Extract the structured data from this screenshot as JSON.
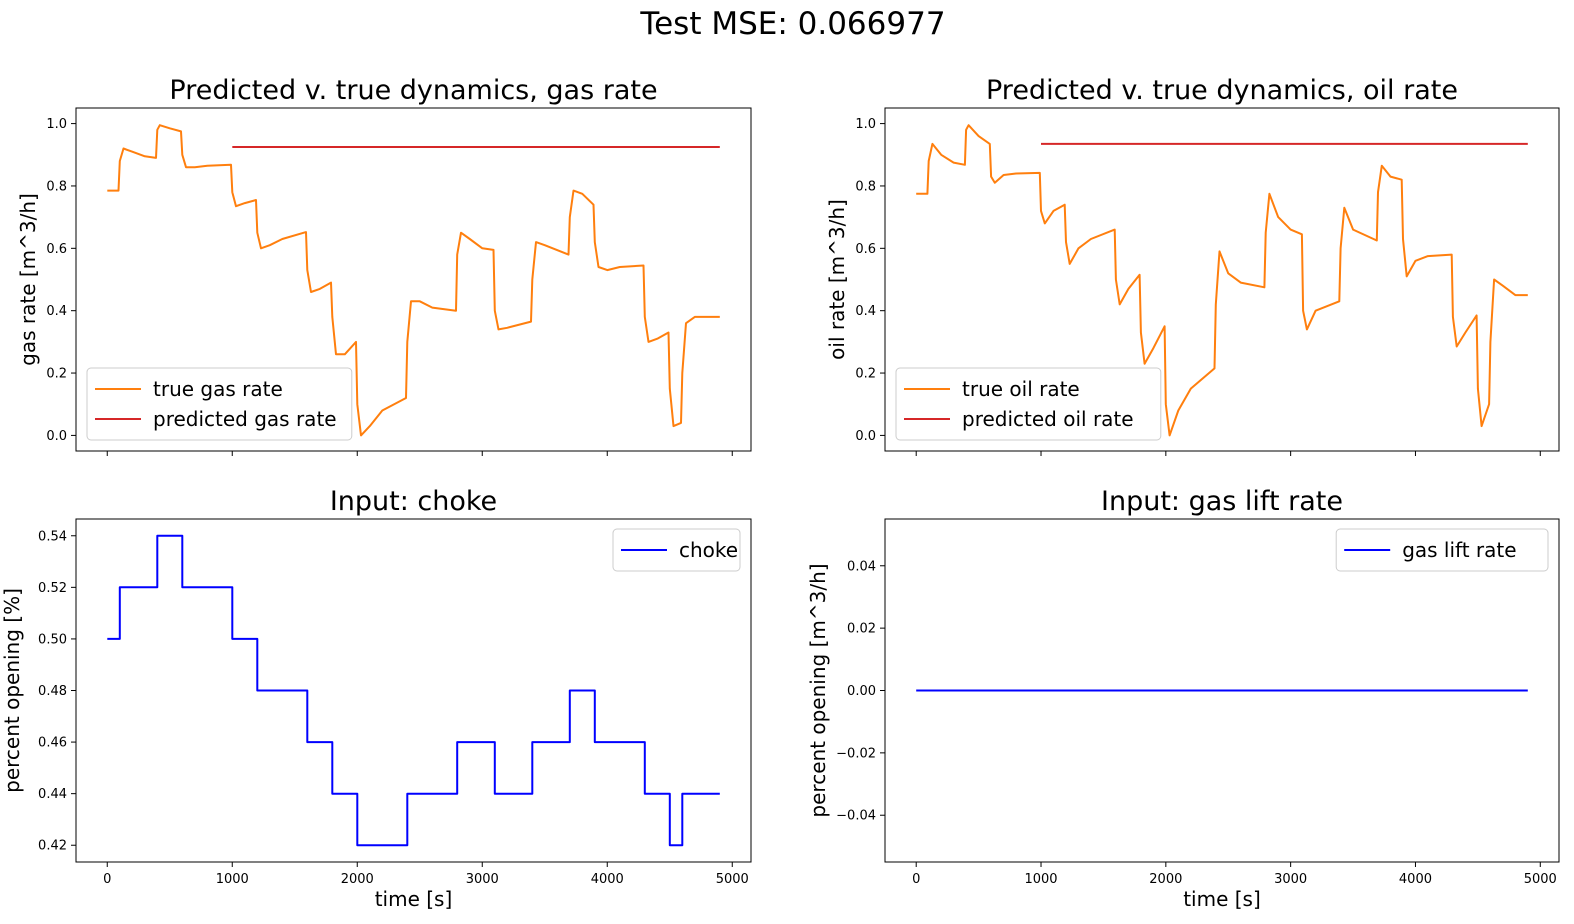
{
  "suptitle": "Test MSE: 0.066977",
  "colors": {
    "true": "#ff7f0e",
    "predicted": "#d62728",
    "input": "#0000ff"
  },
  "chart_data": [
    {
      "type": "line",
      "title": "Predicted v. true dynamics, gas rate",
      "xlabel": "",
      "ylabel": "gas rate [m^3/h]",
      "xlim": [
        -250,
        5150
      ],
      "ylim": [
        -0.05,
        1.05
      ],
      "xticks": [
        0,
        1000,
        2000,
        3000,
        4000,
        5000
      ],
      "xtick_labels_visible": false,
      "yticks": [
        0.0,
        0.2,
        0.4,
        0.6,
        0.8,
        1.0
      ],
      "ytick_labels": [
        "0.0",
        "0.2",
        "0.4",
        "0.6",
        "0.8",
        "1.0"
      ],
      "legend_position": "lower-left",
      "series": [
        {
          "name": "true gas rate",
          "color": "#ff7f0e",
          "x": [
            0,
            90,
            100,
            130,
            200,
            300,
            390,
            400,
            420,
            500,
            590,
            600,
            630,
            700,
            800,
            990,
            1000,
            1030,
            1100,
            1190,
            1200,
            1230,
            1300,
            1400,
            1590,
            1600,
            1630,
            1700,
            1790,
            1800,
            1830,
            1900,
            1990,
            2000,
            2030,
            2100,
            2200,
            2390,
            2400,
            2430,
            2500,
            2600,
            2790,
            2800,
            2830,
            2900,
            3000,
            3090,
            3100,
            3130,
            3200,
            3390,
            3400,
            3430,
            3500,
            3690,
            3700,
            3730,
            3800,
            3890,
            3900,
            3930,
            4000,
            4100,
            4290,
            4300,
            4330,
            4400,
            4490,
            4500,
            4530,
            4590,
            4600,
            4630,
            4700,
            4800,
            4900
          ],
          "y": [
            0.785,
            0.785,
            0.88,
            0.92,
            0.91,
            0.895,
            0.89,
            0.98,
            0.995,
            0.985,
            0.975,
            0.9,
            0.86,
            0.86,
            0.865,
            0.868,
            0.78,
            0.735,
            0.745,
            0.755,
            0.65,
            0.6,
            0.61,
            0.63,
            0.652,
            0.53,
            0.46,
            0.47,
            0.49,
            0.38,
            0.26,
            0.26,
            0.3,
            0.1,
            0.0,
            0.03,
            0.08,
            0.12,
            0.3,
            0.43,
            0.43,
            0.41,
            0.4,
            0.58,
            0.65,
            0.63,
            0.6,
            0.595,
            0.4,
            0.34,
            0.345,
            0.365,
            0.5,
            0.62,
            0.61,
            0.58,
            0.7,
            0.785,
            0.775,
            0.74,
            0.62,
            0.54,
            0.53,
            0.54,
            0.545,
            0.38,
            0.3,
            0.31,
            0.33,
            0.15,
            0.03,
            0.04,
            0.2,
            0.36,
            0.38,
            0.38,
            0.38
          ]
        },
        {
          "name": "predicted gas rate",
          "color": "#d62728",
          "x": [
            1000,
            4900
          ],
          "y": [
            0.925,
            0.925
          ]
        }
      ]
    },
    {
      "type": "line",
      "title": "Predicted v. true dynamics, oil rate",
      "xlabel": "",
      "ylabel": "oil rate [m^3/h]",
      "xlim": [
        -250,
        5150
      ],
      "ylim": [
        -0.05,
        1.05
      ],
      "xticks": [
        0,
        1000,
        2000,
        3000,
        4000,
        5000
      ],
      "xtick_labels_visible": false,
      "yticks": [
        0.0,
        0.2,
        0.4,
        0.6,
        0.8,
        1.0
      ],
      "ytick_labels": [
        "0.0",
        "0.2",
        "0.4",
        "0.6",
        "0.8",
        "1.0"
      ],
      "legend_position": "lower-left",
      "series": [
        {
          "name": "true oil rate",
          "color": "#ff7f0e",
          "x": [
            0,
            90,
            100,
            130,
            200,
            300,
            390,
            400,
            420,
            500,
            590,
            600,
            630,
            700,
            800,
            990,
            1000,
            1030,
            1100,
            1190,
            1200,
            1230,
            1300,
            1400,
            1590,
            1600,
            1630,
            1700,
            1790,
            1800,
            1830,
            1900,
            1990,
            2000,
            2030,
            2100,
            2200,
            2390,
            2400,
            2430,
            2500,
            2600,
            2790,
            2800,
            2830,
            2900,
            3000,
            3090,
            3100,
            3130,
            3200,
            3390,
            3400,
            3430,
            3500,
            3690,
            3700,
            3730,
            3800,
            3890,
            3900,
            3930,
            4000,
            4100,
            4290,
            4300,
            4330,
            4400,
            4490,
            4500,
            4530,
            4590,
            4600,
            4630,
            4700,
            4800,
            4900
          ],
          "y": [
            0.775,
            0.775,
            0.88,
            0.935,
            0.9,
            0.875,
            0.868,
            0.98,
            0.995,
            0.96,
            0.935,
            0.83,
            0.81,
            0.835,
            0.84,
            0.842,
            0.72,
            0.68,
            0.72,
            0.74,
            0.62,
            0.55,
            0.6,
            0.63,
            0.66,
            0.5,
            0.42,
            0.47,
            0.515,
            0.33,
            0.23,
            0.28,
            0.35,
            0.1,
            0.0,
            0.08,
            0.15,
            0.215,
            0.42,
            0.59,
            0.52,
            0.49,
            0.475,
            0.65,
            0.775,
            0.7,
            0.66,
            0.645,
            0.4,
            0.34,
            0.4,
            0.43,
            0.6,
            0.73,
            0.66,
            0.625,
            0.78,
            0.865,
            0.83,
            0.82,
            0.63,
            0.51,
            0.56,
            0.575,
            0.58,
            0.38,
            0.285,
            0.33,
            0.385,
            0.15,
            0.03,
            0.1,
            0.3,
            0.5,
            0.48,
            0.45,
            0.45
          ]
        },
        {
          "name": "predicted oil rate",
          "color": "#d62728",
          "x": [
            1000,
            4900
          ],
          "y": [
            0.935,
            0.935
          ]
        }
      ]
    },
    {
      "type": "line",
      "title": "Input: choke",
      "xlabel": "time [s]",
      "ylabel": "percent opening [%]",
      "xlim": [
        -250,
        5150
      ],
      "ylim": [
        0.4135,
        0.5465
      ],
      "xticks": [
        0,
        1000,
        2000,
        3000,
        4000,
        5000
      ],
      "xtick_labels_visible": true,
      "xtick_labels": [
        "0",
        "1000",
        "2000",
        "3000",
        "4000",
        "5000"
      ],
      "yticks": [
        0.42,
        0.44,
        0.46,
        0.48,
        0.5,
        0.52,
        0.54
      ],
      "ytick_labels": [
        "0.42",
        "0.44",
        "0.46",
        "0.48",
        "0.50",
        "0.52",
        "0.54"
      ],
      "legend_position": "upper-right",
      "series": [
        {
          "name": "choke",
          "color": "#0000ff",
          "x": [
            0,
            100,
            100,
            400,
            400,
            600,
            600,
            1000,
            1000,
            1200,
            1200,
            1600,
            1600,
            1800,
            1800,
            2000,
            2000,
            2400,
            2400,
            2800,
            2800,
            3100,
            3100,
            3400,
            3400,
            3700,
            3700,
            3900,
            3900,
            4300,
            4300,
            4500,
            4500,
            4600,
            4600,
            4900
          ],
          "y": [
            0.5,
            0.5,
            0.52,
            0.52,
            0.54,
            0.54,
            0.52,
            0.52,
            0.5,
            0.5,
            0.48,
            0.48,
            0.46,
            0.46,
            0.44,
            0.44,
            0.42,
            0.42,
            0.44,
            0.44,
            0.46,
            0.46,
            0.44,
            0.44,
            0.46,
            0.46,
            0.48,
            0.48,
            0.46,
            0.46,
            0.44,
            0.44,
            0.42,
            0.42,
            0.44,
            0.44
          ]
        }
      ]
    },
    {
      "type": "line",
      "title": "Input: gas lift rate",
      "xlabel": "time [s]",
      "ylabel": "percent opening [m^3/h]",
      "xlim": [
        -250,
        5150
      ],
      "ylim": [
        -0.055,
        0.055
      ],
      "xticks": [
        0,
        1000,
        2000,
        3000,
        4000,
        5000
      ],
      "xtick_labels_visible": true,
      "xtick_labels": [
        "0",
        "1000",
        "2000",
        "3000",
        "4000",
        "5000"
      ],
      "yticks": [
        -0.04,
        -0.02,
        0.0,
        0.02,
        0.04
      ],
      "ytick_labels": [
        "−0.04",
        "−0.02",
        "0.00",
        "0.02",
        "0.04"
      ],
      "legend_position": "upper-right",
      "series": [
        {
          "name": "gas lift rate",
          "color": "#0000ff",
          "x": [
            0,
            4900
          ],
          "y": [
            0.0,
            0.0
          ]
        }
      ]
    }
  ]
}
